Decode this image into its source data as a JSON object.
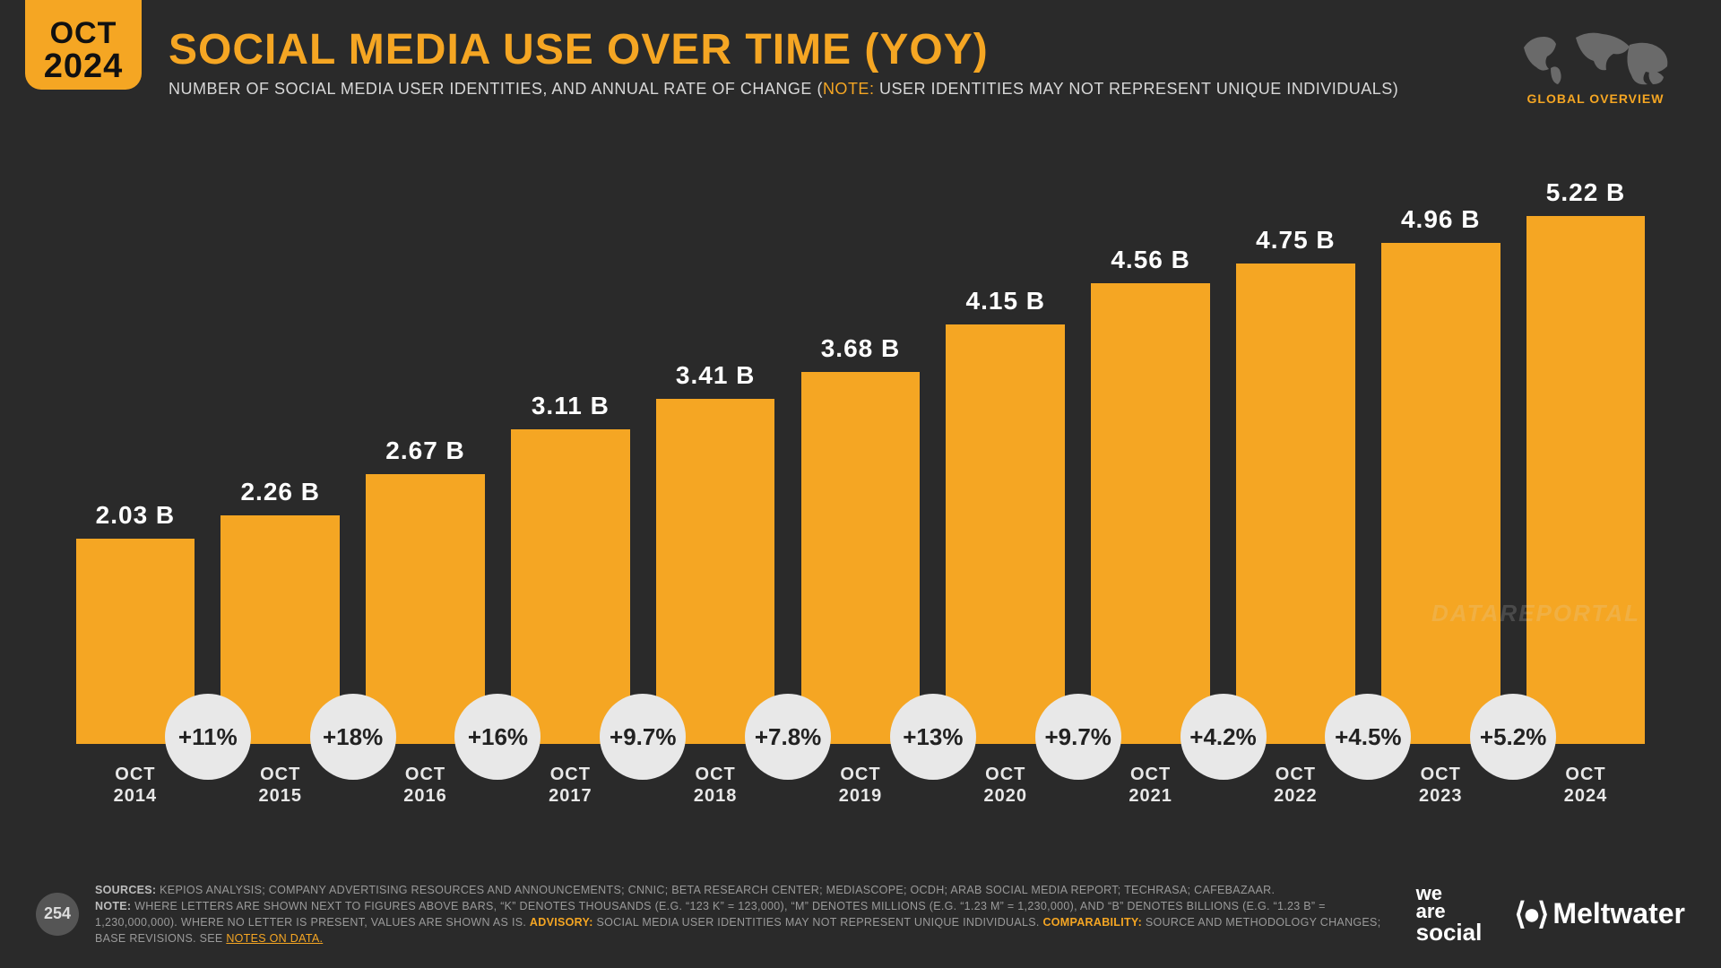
{
  "badge": {
    "month": "OCT",
    "year": "2024"
  },
  "title": "SOCIAL MEDIA USE OVER TIME (YOY)",
  "subtitle_pre": "NUMBER OF SOCIAL MEDIA USER IDENTITIES, AND ANNUAL RATE OF CHANGE (",
  "subtitle_note": "NOTE:",
  "subtitle_post": " USER IDENTITIES MAY NOT REPRESENT UNIQUE INDIVIDUALS)",
  "globe_label": "GLOBAL OVERVIEW",
  "watermark": "DATAREPORTAL",
  "chart": {
    "type": "bar",
    "bar_color": "#f5a623",
    "background_color": "#2a2a2a",
    "value_color": "#ffffff",
    "bubble_bg": "#e8e8e8",
    "bubble_text": "#222222",
    "max_value": 5.22,
    "value_fontsize": 28,
    "tick_fontsize": 20,
    "bubble_fontsize": 26,
    "bars": [
      {
        "label_top": "OCT",
        "label_bot": "2014",
        "value": 2.03,
        "display": "2.03 B"
      },
      {
        "label_top": "OCT",
        "label_bot": "2015",
        "value": 2.26,
        "display": "2.26 B"
      },
      {
        "label_top": "OCT",
        "label_bot": "2016",
        "value": 2.67,
        "display": "2.67 B"
      },
      {
        "label_top": "OCT",
        "label_bot": "2017",
        "value": 3.11,
        "display": "3.11 B"
      },
      {
        "label_top": "OCT",
        "label_bot": "2018",
        "value": 3.41,
        "display": "3.41 B"
      },
      {
        "label_top": "OCT",
        "label_bot": "2019",
        "value": 3.68,
        "display": "3.68 B"
      },
      {
        "label_top": "OCT",
        "label_bot": "2020",
        "value": 4.15,
        "display": "4.15 B"
      },
      {
        "label_top": "OCT",
        "label_bot": "2021",
        "value": 4.56,
        "display": "4.56 B"
      },
      {
        "label_top": "OCT",
        "label_bot": "2022",
        "value": 4.75,
        "display": "4.75 B"
      },
      {
        "label_top": "OCT",
        "label_bot": "2023",
        "value": 4.96,
        "display": "4.96 B"
      },
      {
        "label_top": "OCT",
        "label_bot": "2024",
        "value": 5.22,
        "display": "5.22 B"
      }
    ],
    "bubbles": [
      "+11%",
      "+18%",
      "+16%",
      "+9.7%",
      "+7.8%",
      "+13%",
      "+9.7%",
      "+4.2%",
      "+4.5%",
      "+5.2%"
    ]
  },
  "footer": {
    "page": "254",
    "sources_label": "SOURCES:",
    "sources": " KEPIOS ANALYSIS; COMPANY ADVERTISING RESOURCES AND ANNOUNCEMENTS; CNNIC; BETA RESEARCH CENTER; MEDIASCOPE; OCDH; ARAB SOCIAL MEDIA REPORT; TECHRASA; CAFEBAZAAR.",
    "note_label": "NOTE:",
    "note": " WHERE LETTERS ARE SHOWN NEXT TO FIGURES ABOVE BARS, “K” DENOTES THOUSANDS (E.G. “123 K” = 123,000), “M” DENOTES MILLIONS (E.G. “1.23 M” = 1,230,000), AND “B” DENOTES BILLIONS (E.G. “1.23 B” = 1,230,000,000). WHERE NO LETTER IS PRESENT, VALUES ARE SHOWN AS IS. ",
    "advisory_label": "ADVISORY:",
    "advisory": " SOCIAL MEDIA USER IDENTITIES MAY NOT REPRESENT UNIQUE INDIVIDUALS. ",
    "comp_label": "COMPARABILITY:",
    "comp": " SOURCE AND METHODOLOGY CHANGES; BASE REVISIONS. SEE ",
    "link": "NOTES ON DATA.",
    "logo1_l1": "we",
    "logo1_l2": "are",
    "logo1_l3": "social",
    "logo2": "Meltwater"
  }
}
